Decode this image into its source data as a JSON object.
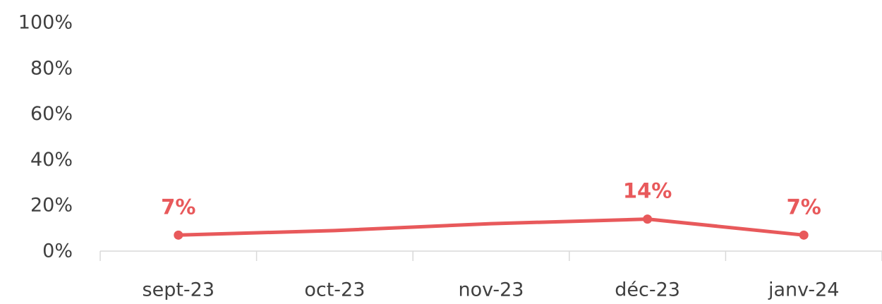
{
  "chart_data": {
    "type": "line",
    "categories": [
      "sept-23",
      "oct-23",
      "nov-23",
      "déc-23",
      "janv-24"
    ],
    "series": [
      {
        "color": "#e8595b",
        "values": [
          7,
          9,
          12,
          14,
          7
        ],
        "value_labels": [
          "7%",
          null,
          null,
          "14%",
          "7%"
        ]
      }
    ],
    "ylim": [
      0,
      100
    ],
    "yticks": [
      {
        "value": 0,
        "label": "0%"
      },
      {
        "value": 20,
        "label": "20%"
      },
      {
        "value": 40,
        "label": "40%"
      },
      {
        "value": 60,
        "label": "60%"
      },
      {
        "value": 80,
        "label": "80%"
      },
      {
        "value": 100,
        "label": "100%"
      }
    ],
    "grid": false
  }
}
